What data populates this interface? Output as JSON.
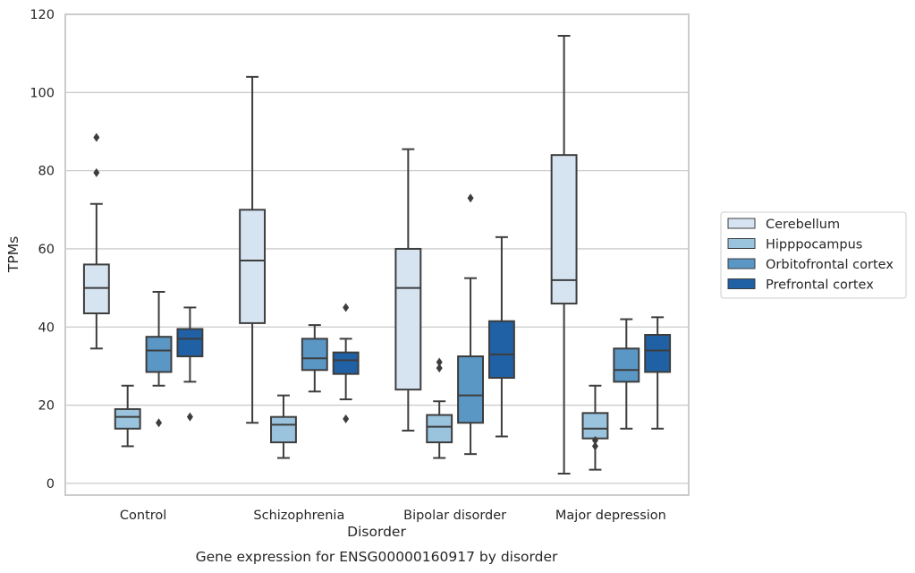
{
  "caption": "Gene expression for ENSG00000160917 by disorder",
  "chart_data": {
    "type": "box",
    "title": "",
    "xlabel": "Disorder",
    "ylabel": "TPMs",
    "ylim": [
      -3,
      120
    ],
    "yticks": [
      0,
      20,
      40,
      60,
      80,
      100,
      120
    ],
    "grid": "horizontal",
    "legend_position": "right",
    "categories": [
      "Control",
      "Schizophrenia",
      "Bipolar disorder",
      "Major depression"
    ],
    "series": [
      {
        "name": "Cerebellum",
        "color": "#d6e4f2",
        "boxes": [
          {
            "whislo": 34.5,
            "q1": 43.5,
            "med": 50,
            "q3": 56,
            "whishi": 71.5,
            "fliers": [
              79.5,
              88.5
            ]
          },
          {
            "whislo": 15.5,
            "q1": 41,
            "med": 57,
            "q3": 70,
            "whishi": 104,
            "fliers": []
          },
          {
            "whislo": 13.5,
            "q1": 24,
            "med": 50,
            "q3": 60,
            "whishi": 85.5,
            "fliers": []
          },
          {
            "whislo": 2.5,
            "q1": 46,
            "med": 52,
            "q3": 84,
            "whishi": 114.5,
            "fliers": []
          }
        ]
      },
      {
        "name": "Hipppocampus",
        "color": "#9ac3dd",
        "boxes": [
          {
            "whislo": 9.5,
            "q1": 14,
            "med": 17,
            "q3": 19,
            "whishi": 25,
            "fliers": []
          },
          {
            "whislo": 6.5,
            "q1": 10.5,
            "med": 15,
            "q3": 17,
            "whishi": 22.5,
            "fliers": []
          },
          {
            "whislo": 6.5,
            "q1": 10.5,
            "med": 14.5,
            "q3": 17.5,
            "whishi": 21,
            "fliers": []
          },
          {
            "whislo": 3.5,
            "q1": 11.5,
            "med": 14,
            "q3": 18,
            "whishi": 25,
            "fliers": []
          }
        ]
      },
      {
        "name": "Orbitofrontal cortex",
        "color": "#5a97c5",
        "boxes": [
          {
            "whislo": 25,
            "q1": 28.5,
            "med": 34,
            "q3": 37.5,
            "whishi": 49,
            "fliers": [
              15.5
            ]
          },
          {
            "whislo": 23.5,
            "q1": 29,
            "med": 32,
            "q3": 37,
            "whishi": 40.5,
            "fliers": []
          },
          {
            "whislo": 7.5,
            "q1": 15.5,
            "med": 22.5,
            "q3": 32.5,
            "whishi": 52.5,
            "fliers": [
              73
            ]
          },
          {
            "whislo": 14,
            "q1": 26,
            "med": 29,
            "q3": 34.5,
            "whishi": 42,
            "fliers": []
          }
        ]
      },
      {
        "name": "Prefrontal cortex",
        "color": "#2061a5",
        "boxes": [
          {
            "whislo": 26,
            "q1": 32.5,
            "med": 37,
            "q3": 39.5,
            "whishi": 45,
            "fliers": [
              17
            ]
          },
          {
            "whislo": 21.5,
            "q1": 28,
            "med": 31.5,
            "q3": 33.5,
            "whishi": 37,
            "fliers": [
              16.5,
              45
            ]
          },
          {
            "whislo": 12,
            "q1": 27,
            "med": 33,
            "q3": 41.5,
            "whishi": 63,
            "fliers": []
          },
          {
            "whislo": 14,
            "q1": 28.5,
            "med": 34,
            "q3": 38,
            "whishi": 42.5,
            "fliers": []
          }
        ]
      }
    ],
    "fliers_extra": [
      {
        "category": 2,
        "series": 1,
        "values": [
          29.5,
          31
        ]
      },
      {
        "category": 3,
        "series": 1,
        "values": [
          9.5,
          11
        ]
      }
    ]
  }
}
